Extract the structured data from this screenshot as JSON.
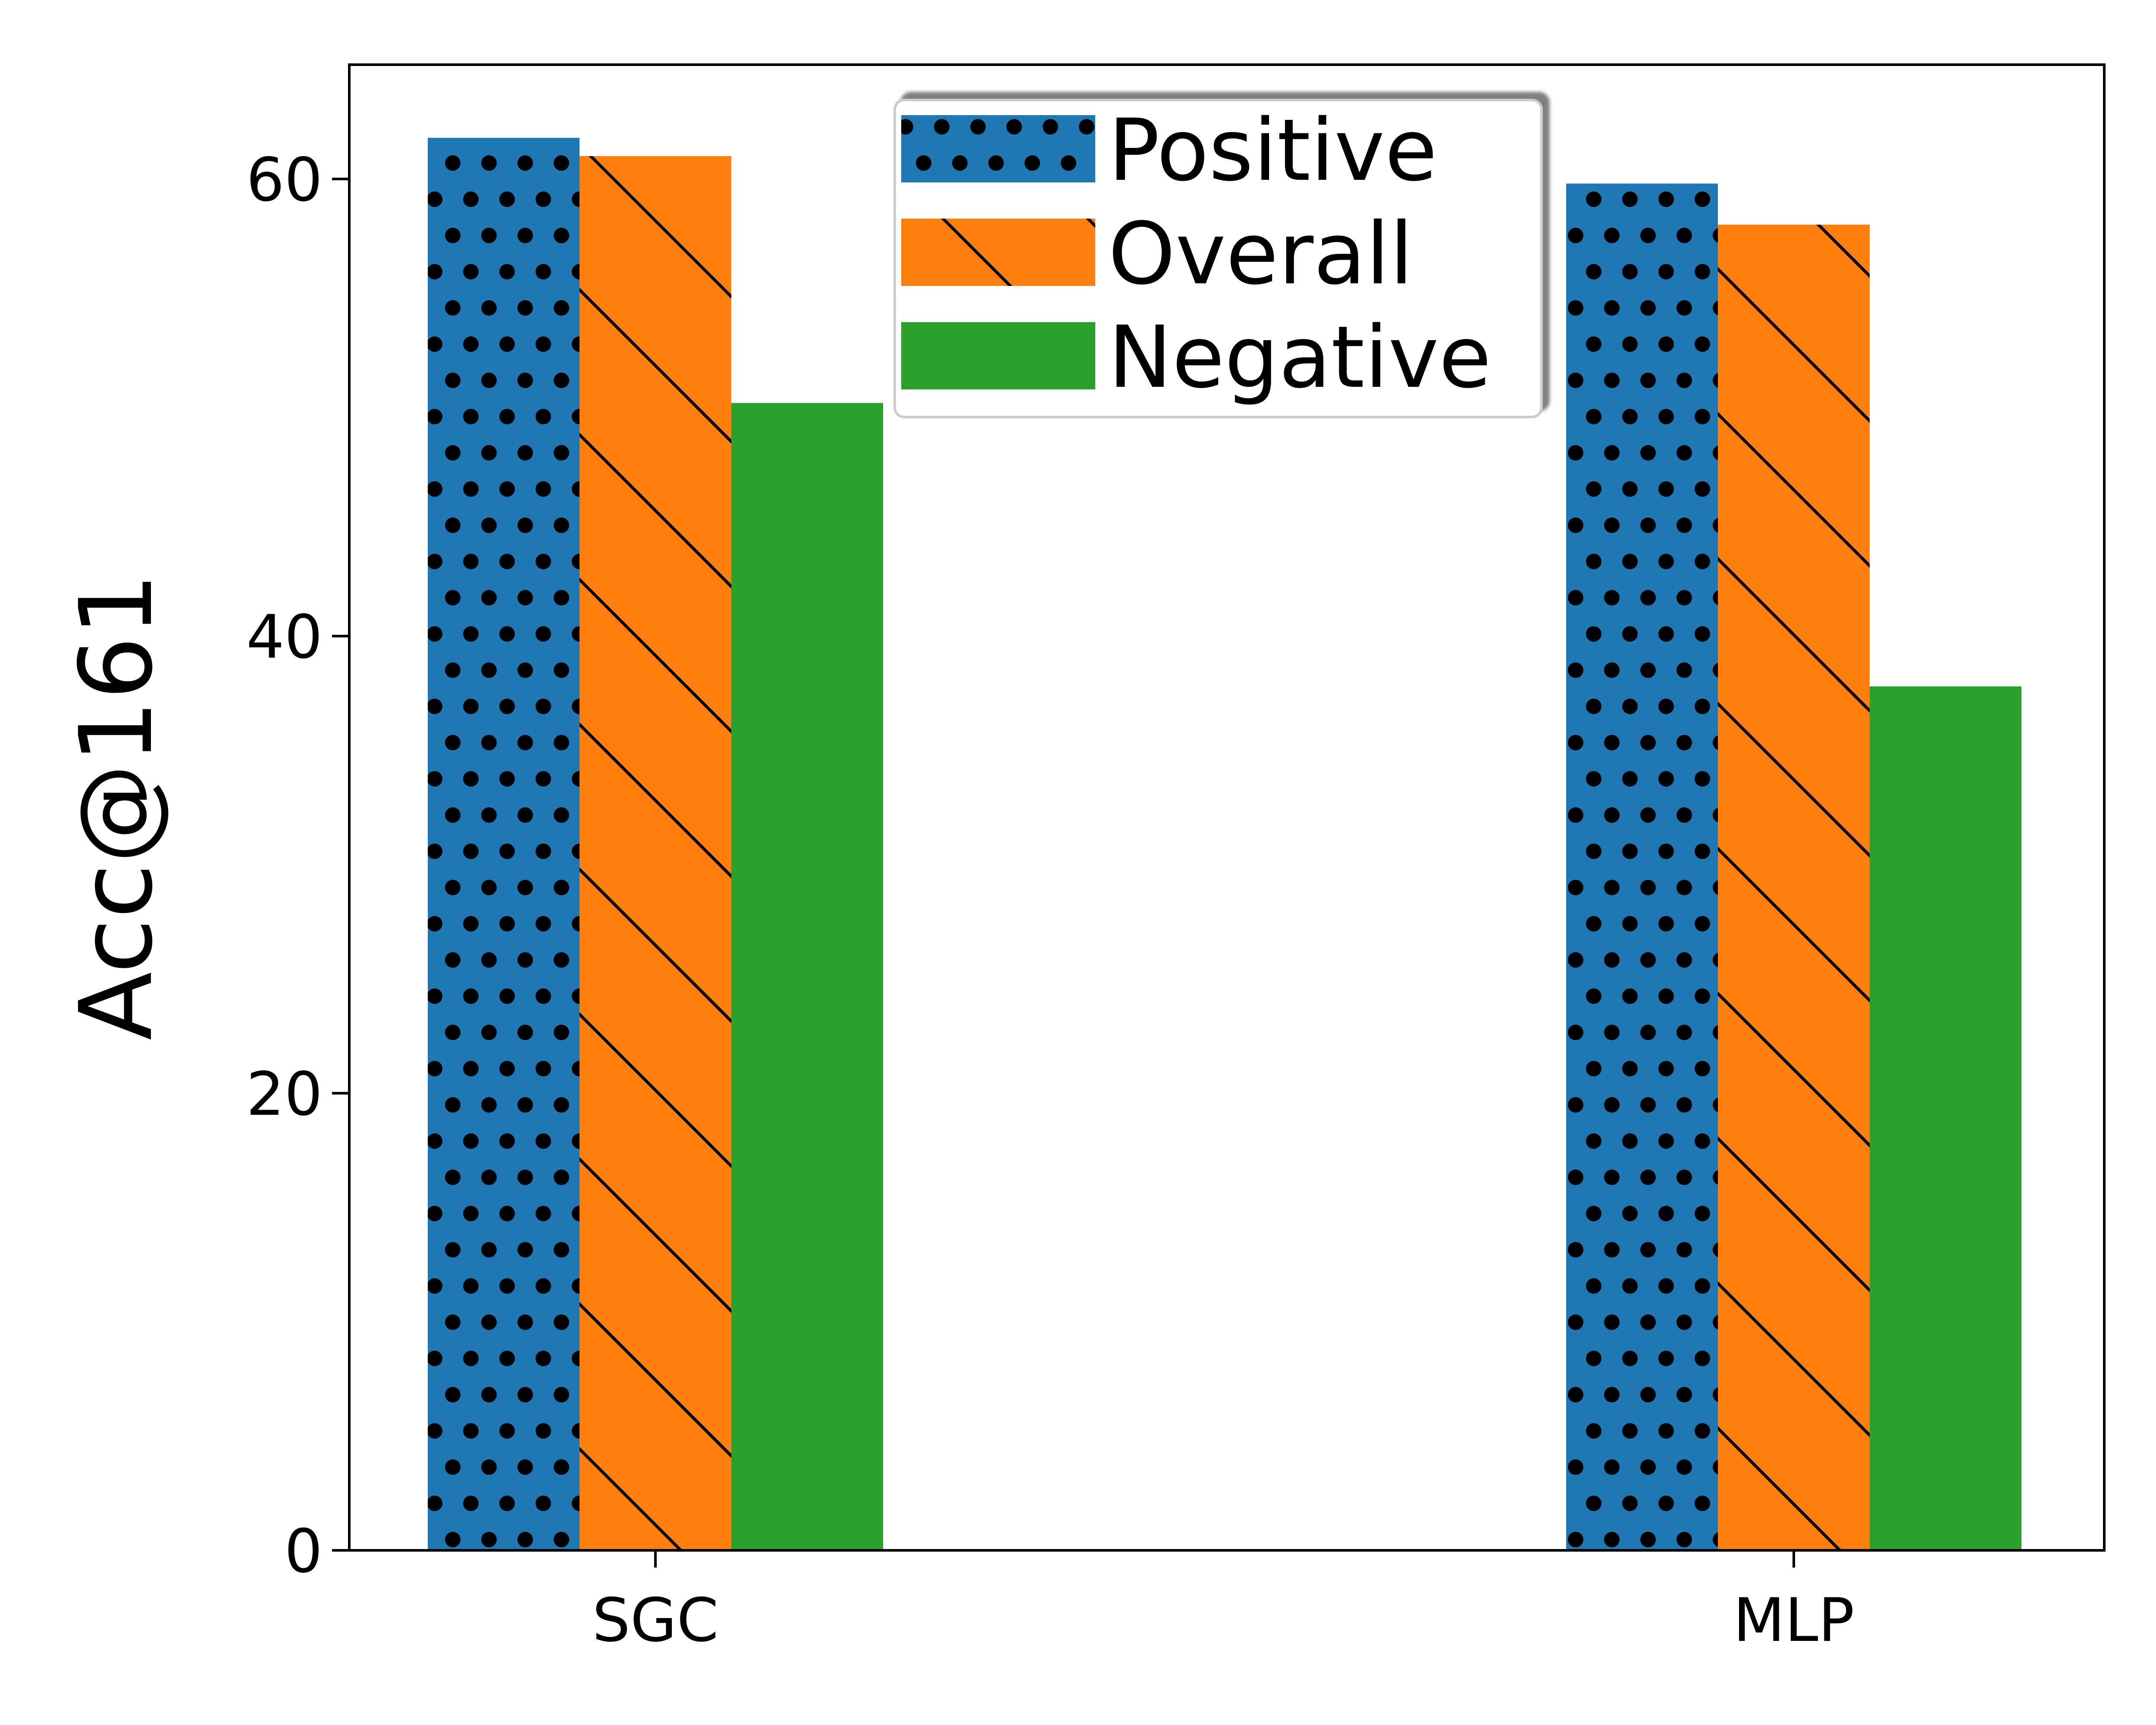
{
  "chart_data": {
    "type": "bar",
    "title": "",
    "xlabel": "",
    "ylabel": "Acc@161",
    "ylim": [
      0,
      65
    ],
    "yticks": [
      0,
      20,
      40,
      60
    ],
    "yticklabels": [
      "0",
      "20",
      "40",
      "60"
    ],
    "categories": [
      "SGC",
      "MLP"
    ],
    "grid": false,
    "legend_position": "top-center",
    "series": [
      {
        "name": "Positive",
        "values": [
          61.8,
          59.8
        ],
        "color": "#1f77b4",
        "hatch": "dots"
      },
      {
        "name": "Overall",
        "values": [
          61.0,
          58.0
        ],
        "color": "#ff7f0e",
        "hatch": "diagonal"
      },
      {
        "name": "Negative",
        "values": [
          50.2,
          37.8
        ],
        "color": "#2ca02c",
        "hatch": "none"
      }
    ]
  }
}
